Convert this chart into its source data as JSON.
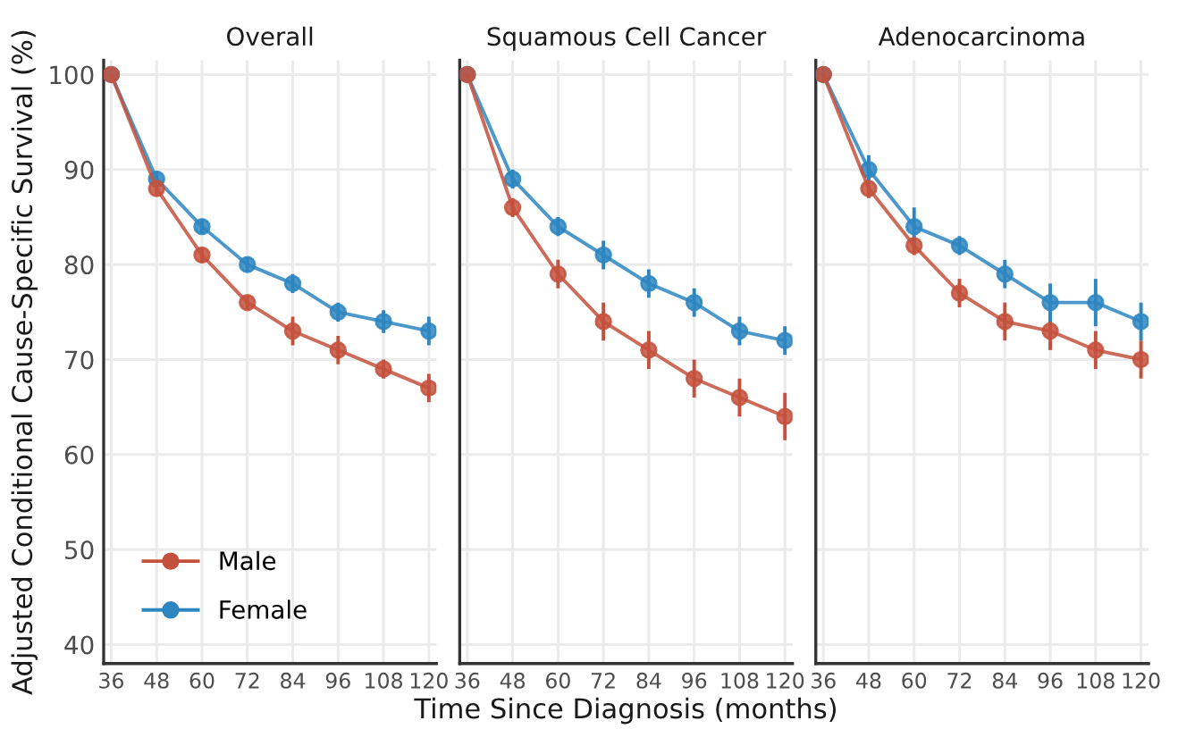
{
  "chart_data": [
    {
      "type": "line",
      "title": "Overall",
      "ylabel": "Adjusted Conditional Cause-Specific Survival (%)",
      "x": [
        36,
        48,
        60,
        72,
        84,
        96,
        108,
        120
      ],
      "xlim": [
        34,
        122
      ],
      "xticks": [
        36,
        48,
        60,
        72,
        84,
        96,
        108,
        120
      ],
      "ylim": [
        38,
        101.5
      ],
      "yticks": [
        40,
        50,
        60,
        70,
        80,
        90,
        100
      ],
      "grid": true,
      "marker": "circle",
      "line_style": "solid",
      "legend": "bottom left",
      "series": [
        {
          "name": "Male",
          "color": "#c4513d",
          "values": [
            100,
            88,
            81,
            76,
            73,
            71,
            69,
            67
          ],
          "errors": [
            null,
            0.8,
            0.8,
            0.8,
            1.5,
            1.5,
            1,
            1.5
          ]
        },
        {
          "name": "Female",
          "color": "#2e86c1",
          "values": [
            100,
            89,
            84,
            80,
            78,
            75,
            74,
            73
          ],
          "errors": [
            null,
            0.8,
            0.8,
            0.8,
            1,
            1,
            1.2,
            1.5
          ]
        }
      ]
    },
    {
      "type": "line",
      "title": "Squamous Cell Cancer",
      "xlabel": "Time Since Diagnosis (months)",
      "x": [
        36,
        48,
        60,
        72,
        84,
        96,
        108,
        120
      ],
      "xlim": [
        34,
        122
      ],
      "xticks": [
        36,
        48,
        60,
        72,
        84,
        96,
        108,
        120
      ],
      "ylim": [
        38,
        101.5
      ],
      "yticks": [
        40,
        50,
        60,
        70,
        80,
        90,
        100
      ],
      "tick_labels": "x",
      "grid": true,
      "marker": "circle",
      "line_style": "solid",
      "series": [
        {
          "color": "#c4513d",
          "values": [
            100,
            86,
            79,
            74,
            71,
            68,
            66,
            64
          ],
          "errors": [
            null,
            1,
            1.5,
            2,
            2,
            2,
            2,
            2.5
          ]
        },
        {
          "color": "#2e86c1",
          "values": [
            100,
            89,
            84,
            81,
            78,
            76,
            73,
            72
          ],
          "errors": [
            null,
            1,
            1,
            1.5,
            1.5,
            1.5,
            1.5,
            1.5
          ]
        }
      ]
    },
    {
      "type": "line",
      "title": "Adenocarcinoma",
      "x": [
        36,
        48,
        60,
        72,
        84,
        96,
        108,
        120
      ],
      "xlim": [
        34,
        122
      ],
      "xticks": [
        36,
        48,
        60,
        72,
        84,
        96,
        108,
        120
      ],
      "ylim": [
        38,
        101.5
      ],
      "yticks": [
        40,
        50,
        60,
        70,
        80,
        90,
        100
      ],
      "tick_labels": "x",
      "grid": true,
      "marker": "circle",
      "line_style": "solid",
      "series": [
        {
          "color": "#c4513d",
          "values": [
            100,
            88,
            82,
            77,
            74,
            73,
            71,
            70
          ],
          "errors": [
            null,
            1,
            1,
            1.5,
            2,
            2,
            2,
            2
          ]
        },
        {
          "color": "#2e86c1",
          "values": [
            100,
            90,
            84,
            82,
            79,
            76,
            76,
            74
          ],
          "errors": [
            null,
            1.5,
            2,
            1,
            1.5,
            2,
            2.5,
            2
          ]
        }
      ]
    }
  ]
}
